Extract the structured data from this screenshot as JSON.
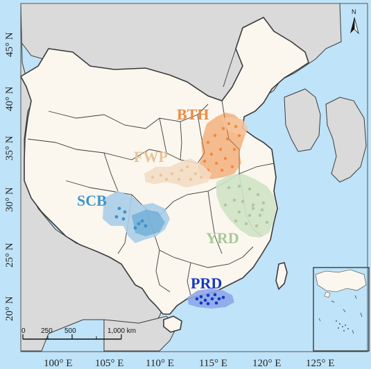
{
  "map": {
    "colors": {
      "sea": "#bfe3f8",
      "land_other": "#dadada",
      "land_china": "#fbf7ee",
      "border": "#3a3a3a"
    },
    "regions": [
      {
        "key": "bth",
        "label": "BTH",
        "color": "#ef8a3f",
        "fill": "#f6c7a0"
      },
      {
        "key": "fwp",
        "label": "FWP",
        "color": "#e9c39a",
        "fill": "#f3dcc3"
      },
      {
        "key": "scb",
        "label": "SCB",
        "color": "#3f93c9",
        "fill": "#a9cde8"
      },
      {
        "key": "yrd",
        "label": "YRD",
        "color": "#a9c99a",
        "fill": "#cfe2c4"
      },
      {
        "key": "prd",
        "label": "PRD",
        "color": "#1637c6",
        "fill": "#8ea6e8"
      }
    ],
    "lat_labels": [
      "45° N",
      "40° N",
      "35° N",
      "30° N",
      "25° N",
      "20° N"
    ],
    "lon_labels": [
      "100° E",
      "105° E",
      "110° E",
      "115° E",
      "120° E",
      "125° E"
    ],
    "scale_bar": {
      "ticks": [
        "0",
        "250",
        "500",
        "1,000 km"
      ]
    },
    "north_arrow": {
      "label": "N"
    },
    "inset": {
      "label": "South China Sea inset"
    }
  }
}
